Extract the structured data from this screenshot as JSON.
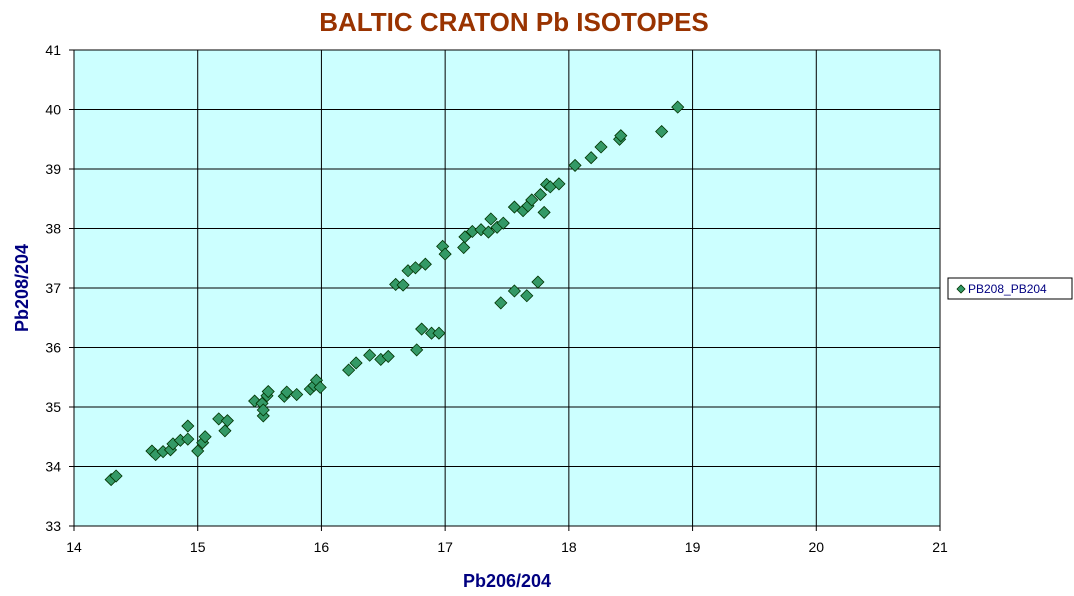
{
  "chart_data": {
    "type": "scatter",
    "title": "BALTIC CRATON Pb ISOTOPES",
    "xlabel": "Pb206/204",
    "ylabel": "Pb208/204",
    "xlim": [
      14,
      21
    ],
    "ylim": [
      33,
      41
    ],
    "xticks": [
      "14",
      "15",
      "16",
      "17",
      "18",
      "19",
      "20",
      "21"
    ],
    "yticks": [
      "33",
      "34",
      "35",
      "36",
      "37",
      "38",
      "39",
      "40",
      "41"
    ],
    "grid": true,
    "legend_position": "right",
    "colors": {
      "plot_background": "#ccffff",
      "marker": "#339966",
      "marker_stroke": "#003300",
      "title": "#993300",
      "axis_label": "#000080"
    },
    "series": [
      {
        "name": "PB208_PB204",
        "points": [
          [
            14.3,
            33.78
          ],
          [
            14.34,
            33.84
          ],
          [
            14.63,
            34.26
          ],
          [
            14.66,
            34.2
          ],
          [
            14.72,
            34.25
          ],
          [
            14.78,
            34.28
          ],
          [
            14.8,
            34.38
          ],
          [
            14.86,
            34.44
          ],
          [
            14.92,
            34.46
          ],
          [
            14.92,
            34.68
          ],
          [
            15.0,
            34.26
          ],
          [
            15.04,
            34.4
          ],
          [
            15.06,
            34.5
          ],
          [
            15.17,
            34.8
          ],
          [
            15.22,
            34.6
          ],
          [
            15.24,
            34.77
          ],
          [
            15.46,
            35.1
          ],
          [
            15.52,
            35.06
          ],
          [
            15.53,
            34.85
          ],
          [
            15.53,
            34.95
          ],
          [
            15.56,
            35.19
          ],
          [
            15.57,
            35.26
          ],
          [
            15.7,
            35.18
          ],
          [
            15.72,
            35.25
          ],
          [
            15.8,
            35.21
          ],
          [
            15.91,
            35.3
          ],
          [
            15.94,
            35.36
          ],
          [
            15.96,
            35.45
          ],
          [
            15.99,
            35.33
          ],
          [
            16.22,
            35.62
          ],
          [
            16.28,
            35.74
          ],
          [
            16.39,
            35.87
          ],
          [
            16.48,
            35.8
          ],
          [
            16.54,
            35.85
          ],
          [
            16.6,
            37.06
          ],
          [
            16.66,
            37.05
          ],
          [
            16.7,
            37.29
          ],
          [
            16.76,
            37.34
          ],
          [
            16.84,
            37.4
          ],
          [
            16.77,
            35.96
          ],
          [
            16.81,
            36.31
          ],
          [
            16.89,
            36.24
          ],
          [
            16.95,
            36.24
          ],
          [
            16.98,
            37.7
          ],
          [
            17.0,
            37.57
          ],
          [
            17.15,
            37.68
          ],
          [
            17.16,
            37.86
          ],
          [
            17.22,
            37.95
          ],
          [
            17.29,
            37.98
          ],
          [
            17.35,
            37.94
          ],
          [
            17.37,
            38.16
          ],
          [
            17.42,
            38.02
          ],
          [
            17.47,
            38.09
          ],
          [
            17.45,
            36.75
          ],
          [
            17.56,
            36.95
          ],
          [
            17.66,
            36.87
          ],
          [
            17.75,
            37.1
          ],
          [
            17.56,
            38.36
          ],
          [
            17.63,
            38.3
          ],
          [
            17.67,
            38.38
          ],
          [
            17.7,
            38.48
          ],
          [
            17.77,
            38.57
          ],
          [
            17.8,
            38.27
          ],
          [
            17.82,
            38.74
          ],
          [
            17.85,
            38.7
          ],
          [
            17.92,
            38.75
          ],
          [
            18.05,
            39.06
          ],
          [
            18.18,
            39.19
          ],
          [
            18.26,
            39.37
          ],
          [
            18.41,
            39.5
          ],
          [
            18.42,
            39.56
          ],
          [
            18.75,
            39.63
          ],
          [
            18.88,
            40.04
          ]
        ]
      }
    ]
  }
}
